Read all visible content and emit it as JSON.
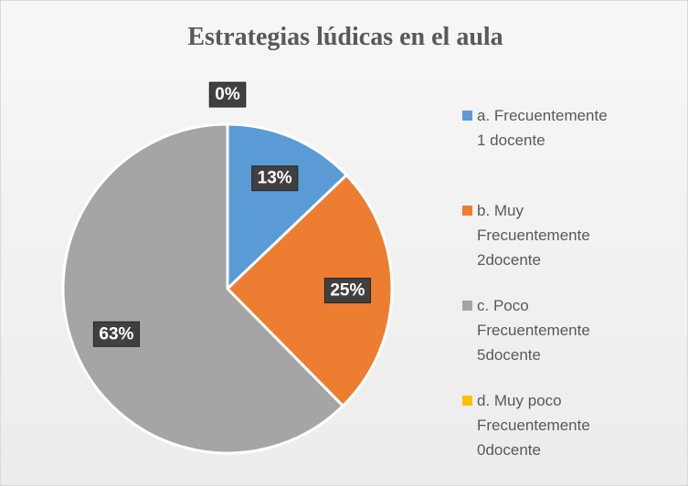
{
  "chart_data": {
    "type": "pie",
    "title": "Estrategias lúdicas en el aula",
    "categories": [
      "a. Frecuentemente 1 docente",
      "b. Muy Frecuentemente 2docente",
      "c. Poco Frecuentemente 5docente",
      "d. Muy poco Frecuentemente 0docente"
    ],
    "values": [
      13,
      25,
      63,
      0
    ],
    "value_labels": [
      "13%",
      "25%",
      "63%",
      "0%"
    ],
    "colors": [
      "#5b9bd5",
      "#ed7d31",
      "#a5a5a5",
      "#ffc000"
    ],
    "legend": "right"
  }
}
